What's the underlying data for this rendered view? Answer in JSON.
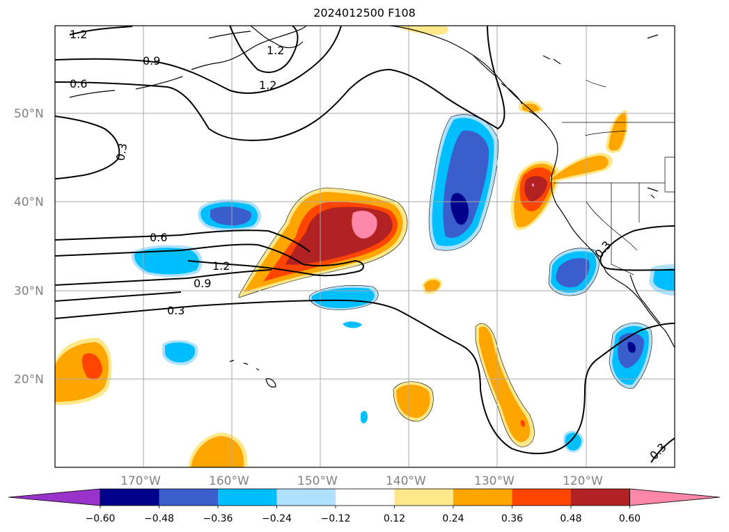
{
  "title": "2024012500 F108",
  "map": {
    "lat_labels": [
      "50°N",
      "40°N",
      "30°N",
      "20°N"
    ],
    "lon_labels": [
      "170°W",
      "160°W",
      "150°W",
      "140°W",
      "130°W",
      "120°W"
    ],
    "contour_labels": [
      "1.2",
      "0.9",
      "0.6",
      "0.3",
      "1.2",
      "1.2",
      "0.6",
      "1.2",
      "0.9",
      "0.3",
      "0.3",
      "0.3"
    ]
  },
  "colorbar": {
    "ticks": [
      "−0.60",
      "−0.48",
      "−0.36",
      "−0.24",
      "−0.12",
      "0.12",
      "0.24",
      "0.36",
      "0.48",
      "0.60"
    ],
    "colors": [
      "#9933cc",
      "#00008b",
      "#3a5fcd",
      "#00bfff",
      "#b0e2ff",
      "#ffffff",
      "#ffe88a",
      "#ffa500",
      "#ff4500",
      "#b22222",
      "#ff88aa"
    ]
  }
}
